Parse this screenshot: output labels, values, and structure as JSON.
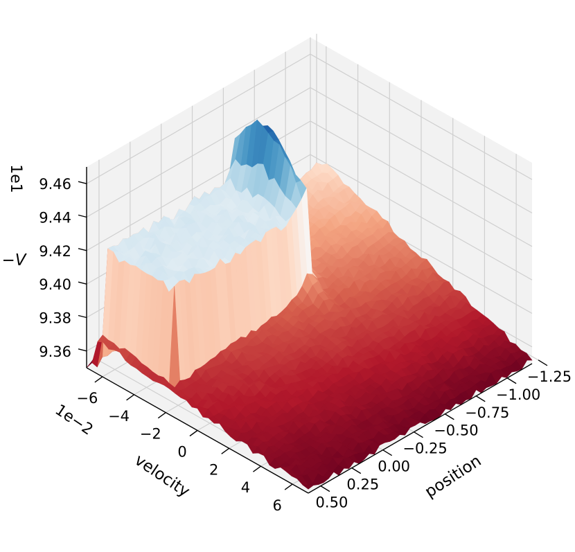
{
  "chart_data": {
    "type": "surface3d",
    "title": "",
    "colormap": "RdBu",
    "colormap_stops": [
      "#67001f",
      "#b2182b",
      "#d6604d",
      "#f4a582",
      "#fddbc7",
      "#f7f7f7",
      "#d1e5f0",
      "#92c5de",
      "#4393c3",
      "#2166ac",
      "#053061"
    ],
    "grid": true,
    "pane_color": "#f2f2f2",
    "xlabel": "position",
    "ylabel": "velocity",
    "zlabel": "−V",
    "x_ticks": [
      0.5,
      0.25,
      0.0,
      -0.25,
      -0.5,
      -0.75,
      -1.0,
      -1.25
    ],
    "x_tick_labels": [
      "0.50",
      "0.25",
      "0.00",
      "−0.25",
      "−0.50",
      "−0.75",
      "−1.00",
      "−1.25"
    ],
    "xlim": [
      0.6,
      -1.2
    ],
    "y_ticks": [
      -6,
      -4,
      -2,
      0,
      2,
      4,
      6
    ],
    "y_tick_labels": [
      "−6",
      "−4",
      "−2",
      "0",
      "2",
      "4",
      "6"
    ],
    "y_offset_text": "1e−2",
    "ylim": [
      -7,
      7
    ],
    "z_ticks": [
      9.36,
      9.38,
      9.4,
      9.42,
      9.44,
      9.46
    ],
    "z_tick_labels": [
      "9.36",
      "9.38",
      "9.40",
      "9.42",
      "9.44",
      "9.46"
    ],
    "z_offset_text": "1e1",
    "zlim": [
      9.35,
      9.47
    ],
    "surface_description": "Surface of −V over position × velocity: a flat plateau near 9.42 for velocity ≤ −2e−2 and position between about −0.5 and 0.5, a sharp peak near 9.465 at position ≈ −0.5, and a low ridge (≈9.35) at velocity ≈ −7e−2."
  }
}
